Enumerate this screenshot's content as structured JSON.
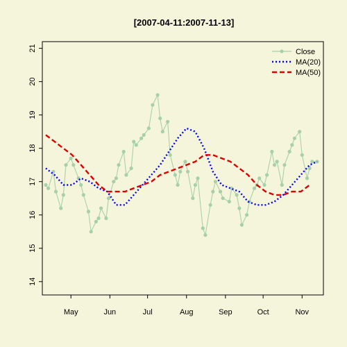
{
  "chart_data": {
    "type": "line",
    "title": "[2007-04-11:2007-11-13]",
    "xlabel": "",
    "ylabel": "",
    "x_range": [
      "2007-04-11",
      "2007-11-13"
    ],
    "ylim": [
      13.6,
      21.2
    ],
    "y_ticks": [
      14,
      15,
      16,
      17,
      18,
      19,
      20,
      21
    ],
    "x_ticks": [
      {
        "date": "2007-05-01",
        "label": "May"
      },
      {
        "date": "2007-06-01",
        "label": "Jun"
      },
      {
        "date": "2007-07-01",
        "label": "Jul"
      },
      {
        "date": "2007-08-01",
        "label": "Aug"
      },
      {
        "date": "2007-09-01",
        "label": "Sep"
      },
      {
        "date": "2007-10-01",
        "label": "Oct"
      },
      {
        "date": "2007-11-01",
        "label": "Nov"
      }
    ],
    "legend": {
      "position": "top-right",
      "entries": [
        {
          "label": "Close",
          "style": "line-points"
        },
        {
          "label": "MA(20)",
          "style": "dotted"
        },
        {
          "label": "MA(50)",
          "style": "dashed"
        }
      ]
    },
    "colors": {
      "close": "#a8d0a8",
      "ma20": "#0000ff",
      "ma50": "#dd0000",
      "background": "#f5f5dc"
    },
    "series": [
      {
        "name": "Close",
        "x": [
          "2007-04-11",
          "2007-04-13",
          "2007-04-17",
          "2007-04-19",
          "2007-04-23",
          "2007-04-25",
          "2007-04-27",
          "2007-05-01",
          "2007-05-03",
          "2007-05-07",
          "2007-05-09",
          "2007-05-11",
          "2007-05-15",
          "2007-05-17",
          "2007-05-21",
          "2007-05-23",
          "2007-05-25",
          "2007-05-29",
          "2007-05-31",
          "2007-06-04",
          "2007-06-06",
          "2007-06-08",
          "2007-06-12",
          "2007-06-14",
          "2007-06-18",
          "2007-06-20",
          "2007-06-22",
          "2007-06-26",
          "2007-06-28",
          "2007-07-02",
          "2007-07-05",
          "2007-07-09",
          "2007-07-11",
          "2007-07-13",
          "2007-07-17",
          "2007-07-19",
          "2007-07-23",
          "2007-07-25",
          "2007-07-27",
          "2007-07-31",
          "2007-08-02",
          "2007-08-06",
          "2007-08-08",
          "2007-08-10",
          "2007-08-14",
          "2007-08-16",
          "2007-08-20",
          "2007-08-22",
          "2007-08-24",
          "2007-08-28",
          "2007-08-30",
          "2007-09-04",
          "2007-09-06",
          "2007-09-10",
          "2007-09-12",
          "2007-09-14",
          "2007-09-18",
          "2007-09-20",
          "2007-09-24",
          "2007-09-26",
          "2007-09-28",
          "2007-10-02",
          "2007-10-04",
          "2007-10-08",
          "2007-10-10",
          "2007-10-12",
          "2007-10-16",
          "2007-10-18",
          "2007-10-22",
          "2007-10-24",
          "2007-10-26",
          "2007-10-30",
          "2007-11-01",
          "2007-11-05",
          "2007-11-07",
          "2007-11-09",
          "2007-11-13"
        ],
        "values": [
          16.9,
          16.8,
          17.3,
          16.7,
          16.2,
          16.6,
          17.5,
          17.7,
          17.5,
          17.1,
          16.9,
          16.6,
          16.1,
          15.5,
          15.8,
          15.9,
          16.2,
          15.9,
          16.5,
          17.0,
          17.1,
          17.5,
          17.9,
          17.2,
          17.4,
          18.2,
          18.1,
          18.3,
          18.4,
          18.6,
          19.3,
          19.6,
          18.9,
          18.5,
          18.8,
          17.8,
          17.2,
          16.9,
          17.3,
          17.6,
          17.3,
          16.5,
          16.9,
          17.1,
          15.6,
          15.4,
          16.3,
          16.7,
          17.0,
          16.7,
          16.5,
          16.4,
          16.8,
          16.6,
          16.2,
          15.7,
          16.0,
          16.4,
          16.8,
          16.9,
          17.1,
          16.9,
          17.2,
          17.9,
          17.5,
          17.6,
          16.9,
          17.5,
          17.9,
          18.1,
          18.3,
          18.5,
          17.8,
          17.1,
          17.4,
          17.6,
          17.6
        ]
      },
      {
        "name": "MA(20)",
        "x": [
          "2007-04-11",
          "2007-04-18",
          "2007-04-25",
          "2007-05-02",
          "2007-05-09",
          "2007-05-16",
          "2007-05-23",
          "2007-05-30",
          "2007-06-06",
          "2007-06-13",
          "2007-06-20",
          "2007-06-27",
          "2007-07-04",
          "2007-07-11",
          "2007-07-18",
          "2007-07-25",
          "2007-08-01",
          "2007-08-08",
          "2007-08-15",
          "2007-08-22",
          "2007-08-29",
          "2007-09-05",
          "2007-09-12",
          "2007-09-19",
          "2007-09-26",
          "2007-10-03",
          "2007-10-10",
          "2007-10-17",
          "2007-10-24",
          "2007-10-31",
          "2007-11-07",
          "2007-11-13"
        ],
        "values": [
          17.4,
          17.2,
          16.9,
          16.9,
          17.1,
          17.0,
          16.8,
          16.7,
          16.3,
          16.3,
          16.6,
          16.9,
          17.2,
          17.5,
          17.9,
          18.3,
          18.6,
          18.5,
          18.0,
          17.3,
          16.9,
          16.8,
          16.7,
          16.4,
          16.3,
          16.3,
          16.4,
          16.6,
          16.9,
          17.2,
          17.5,
          17.6
        ]
      },
      {
        "name": "MA(50)",
        "x": [
          "2007-04-11",
          "2007-04-18",
          "2007-04-25",
          "2007-05-02",
          "2007-05-09",
          "2007-05-16",
          "2007-05-23",
          "2007-05-30",
          "2007-06-06",
          "2007-06-13",
          "2007-06-20",
          "2007-06-27",
          "2007-07-04",
          "2007-07-11",
          "2007-07-18",
          "2007-07-25",
          "2007-08-01",
          "2007-08-08",
          "2007-08-15",
          "2007-08-22",
          "2007-08-29",
          "2007-09-05",
          "2007-09-12",
          "2007-09-19",
          "2007-09-26",
          "2007-10-03",
          "2007-10-10",
          "2007-10-17",
          "2007-10-24",
          "2007-10-31",
          "2007-11-07"
        ],
        "values": [
          18.4,
          18.2,
          18.0,
          17.8,
          17.5,
          17.2,
          16.9,
          16.7,
          16.7,
          16.7,
          16.8,
          16.9,
          17.0,
          17.2,
          17.3,
          17.4,
          17.5,
          17.6,
          17.8,
          17.8,
          17.7,
          17.6,
          17.4,
          17.2,
          16.9,
          16.7,
          16.6,
          16.6,
          16.7,
          16.7,
          16.9
        ]
      }
    ]
  }
}
